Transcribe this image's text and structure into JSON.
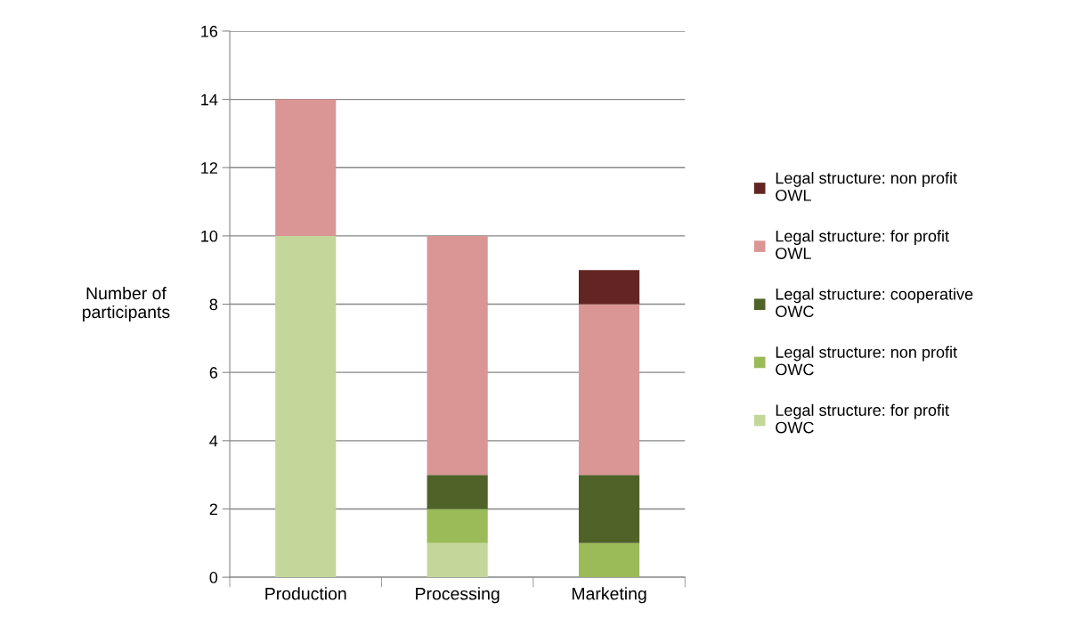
{
  "chart_data": {
    "type": "bar",
    "stacked": true,
    "ylabel": "Number of participants",
    "categories": [
      "Production",
      "Processing",
      "Marketing"
    ],
    "series": [
      {
        "name": "Legal structure: for profit OWC",
        "color": "#c4d79b",
        "values": [
          10,
          1,
          0
        ]
      },
      {
        "name": "Legal structure: non profit OWC",
        "color": "#9bbb59",
        "values": [
          0,
          1,
          1
        ]
      },
      {
        "name": "Legal structure: cooperative OWC",
        "color": "#4f6228",
        "values": [
          0,
          1,
          2
        ]
      },
      {
        "name": "Legal structure: for profit OWL",
        "color": "#da9694",
        "values": [
          4,
          7,
          5
        ]
      },
      {
        "name": "Legal structure: non profit OWL",
        "color": "#632523",
        "values": [
          0,
          0,
          1
        ]
      }
    ],
    "ylim": [
      0,
      16
    ],
    "yticks": [
      0,
      2,
      4,
      6,
      8,
      10,
      12,
      14,
      16
    ],
    "grid": "y",
    "legend": "right"
  }
}
